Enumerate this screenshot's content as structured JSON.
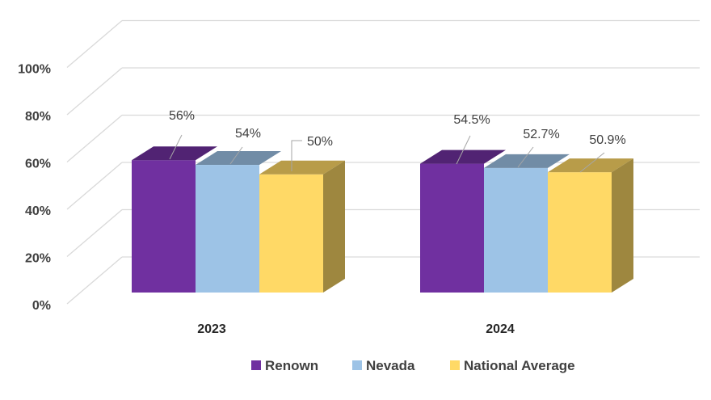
{
  "chart_data": {
    "type": "bar",
    "style": "3d-clustered-column",
    "categories": [
      "2023",
      "2024"
    ],
    "series": [
      {
        "name": "Renown",
        "values": [
          56,
          54.5
        ],
        "labels": [
          "56%",
          "54.5%"
        ],
        "color": "#7030A0"
      },
      {
        "name": "Nevada",
        "values": [
          54,
          52.7
        ],
        "labels": [
          "54%",
          "52.7%"
        ],
        "color": "#9DC3E6"
      },
      {
        "name": "National Average",
        "values": [
          50,
          50.9
        ],
        "labels": [
          "50%",
          "50.9%"
        ],
        "color": "#FFD966"
      }
    ],
    "ylim": [
      0,
      100
    ],
    "yticks": [
      0,
      20,
      40,
      60,
      80,
      100
    ],
    "ytick_labels": [
      "0%",
      "20%",
      "40%",
      "60%",
      "80%",
      "100%"
    ],
    "grid": true,
    "legend_position": "bottom",
    "title": "",
    "xlabel": "",
    "ylabel": ""
  }
}
